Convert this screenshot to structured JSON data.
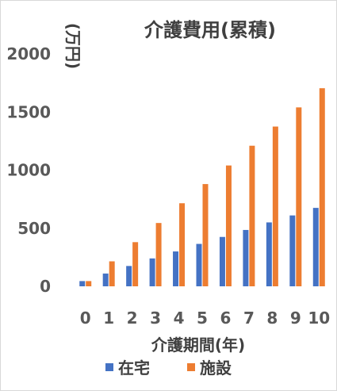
{
  "chart_data": {
    "type": "bar",
    "title": "介護費用(累積)",
    "ylabel": "(万円)",
    "xlabel": "介護期間(年)",
    "categories": [
      "0",
      "1",
      "2",
      "3",
      "4",
      "5",
      "6",
      "7",
      "8",
      "9",
      "10"
    ],
    "ylim": [
      0,
      2000
    ],
    "yticks": [
      "0",
      "500",
      "1000",
      "1500",
      "2000"
    ],
    "ytick_values": [
      0,
      500,
      1000,
      1500,
      2000
    ],
    "grid": false,
    "legend_position": "bottom",
    "series": [
      {
        "name": "在宅",
        "color": "#4472c4",
        "values": [
          45,
          110,
          175,
          240,
          300,
          365,
          425,
          485,
          550,
          610,
          675
        ]
      },
      {
        "name": "施設",
        "color": "#ed7d31",
        "values": [
          45,
          215,
          380,
          545,
          715,
          880,
          1040,
          1210,
          1375,
          1540,
          1705
        ]
      }
    ]
  }
}
